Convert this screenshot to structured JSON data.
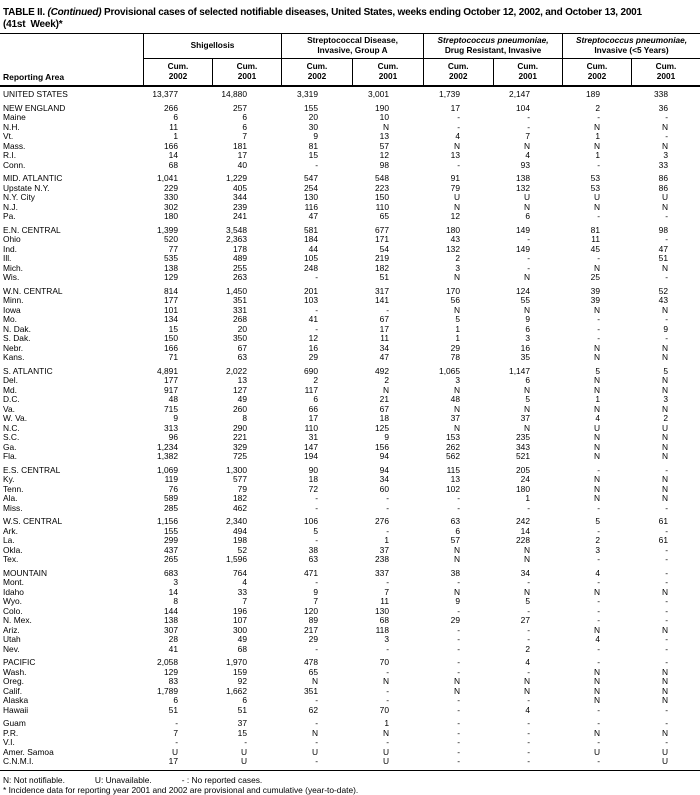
{
  "title": {
    "part1": "TABLE II. ",
    "continued": "(Continued)",
    "part2": " Provisional cases of selected notifiable diseases, United States, weeks ending October 12, 2002, and October 13, 2001",
    "line2": "(41st  Week)*"
  },
  "header": {
    "reporting_area": "Reporting Area",
    "groups": [
      {
        "line1": "Shigellosis",
        "line2": "",
        "line1_italic": false
      },
      {
        "line1": "Streptococcal Disease,",
        "line2": "Invasive, Group A",
        "line1_italic": false
      },
      {
        "line1": "Streptococcus pneumoniae,",
        "line2": "Drug Resistant, Invasive",
        "line1_italic": true
      },
      {
        "line1": "Streptococcus pneumoniae,",
        "line2": "Invasive (<5 Years)",
        "line1_italic": true
      }
    ],
    "subcols": [
      {
        "l1": "Cum.",
        "l2": "2002"
      },
      {
        "l1": "Cum.",
        "l2": "2001"
      }
    ]
  },
  "table": {
    "rows": [
      {
        "area": "UNITED STATES",
        "gap": false,
        "values": [
          "13,377",
          "14,880",
          "3,319",
          "3,001",
          "1,739",
          "2,147",
          "189",
          "338"
        ]
      },
      {
        "area": "NEW ENGLAND",
        "gap": true,
        "values": [
          "266",
          "257",
          "155",
          "190",
          "17",
          "104",
          "2",
          "36"
        ]
      },
      {
        "area": "Maine",
        "gap": false,
        "values": [
          "6",
          "6",
          "20",
          "10",
          "-",
          "-",
          "-",
          "-"
        ]
      },
      {
        "area": "N.H.",
        "gap": false,
        "values": [
          "11",
          "6",
          "30",
          "N",
          "-",
          "-",
          "N",
          "N"
        ]
      },
      {
        "area": "Vt.",
        "gap": false,
        "values": [
          "1",
          "7",
          "9",
          "13",
          "4",
          "7",
          "1",
          "-"
        ]
      },
      {
        "area": "Mass.",
        "gap": false,
        "values": [
          "166",
          "181",
          "81",
          "57",
          "N",
          "N",
          "N",
          "N"
        ]
      },
      {
        "area": "R.I.",
        "gap": false,
        "values": [
          "14",
          "17",
          "15",
          "12",
          "13",
          "4",
          "1",
          "3"
        ]
      },
      {
        "area": "Conn.",
        "gap": false,
        "values": [
          "68",
          "40",
          "-",
          "98",
          "-",
          "93",
          "-",
          "33"
        ]
      },
      {
        "area": "MID. ATLANTIC",
        "gap": true,
        "values": [
          "1,041",
          "1,229",
          "547",
          "548",
          "91",
          "138",
          "53",
          "86"
        ]
      },
      {
        "area": "Upstate N.Y.",
        "gap": false,
        "values": [
          "229",
          "405",
          "254",
          "223",
          "79",
          "132",
          "53",
          "86"
        ]
      },
      {
        "area": "N.Y. City",
        "gap": false,
        "values": [
          "330",
          "344",
          "130",
          "150",
          "U",
          "U",
          "U",
          "U"
        ]
      },
      {
        "area": "N.J.",
        "gap": false,
        "values": [
          "302",
          "239",
          "116",
          "110",
          "N",
          "N",
          "N",
          "N"
        ]
      },
      {
        "area": "Pa.",
        "gap": false,
        "values": [
          "180",
          "241",
          "47",
          "65",
          "12",
          "6",
          "-",
          "-"
        ]
      },
      {
        "area": "E.N. CENTRAL",
        "gap": true,
        "values": [
          "1,399",
          "3,548",
          "581",
          "677",
          "180",
          "149",
          "81",
          "98"
        ]
      },
      {
        "area": "Ohio",
        "gap": false,
        "values": [
          "520",
          "2,363",
          "184",
          "171",
          "43",
          "-",
          "11",
          "-"
        ]
      },
      {
        "area": "Ind.",
        "gap": false,
        "values": [
          "77",
          "178",
          "44",
          "54",
          "132",
          "149",
          "45",
          "47"
        ]
      },
      {
        "area": "Ill.",
        "gap": false,
        "values": [
          "535",
          "489",
          "105",
          "219",
          "2",
          "-",
          "-",
          "51"
        ]
      },
      {
        "area": "Mich.",
        "gap": false,
        "values": [
          "138",
          "255",
          "248",
          "182",
          "3",
          "-",
          "N",
          "N"
        ]
      },
      {
        "area": "Wis.",
        "gap": false,
        "values": [
          "129",
          "263",
          "-",
          "51",
          "N",
          "N",
          "25",
          "-"
        ]
      },
      {
        "area": "W.N. CENTRAL",
        "gap": true,
        "values": [
          "814",
          "1,450",
          "201",
          "317",
          "170",
          "124",
          "39",
          "52"
        ]
      },
      {
        "area": "Minn.",
        "gap": false,
        "values": [
          "177",
          "351",
          "103",
          "141",
          "56",
          "55",
          "39",
          "43"
        ]
      },
      {
        "area": "Iowa",
        "gap": false,
        "values": [
          "101",
          "331",
          "-",
          "-",
          "N",
          "N",
          "N",
          "N"
        ]
      },
      {
        "area": "Mo.",
        "gap": false,
        "values": [
          "134",
          "268",
          "41",
          "67",
          "5",
          "9",
          "-",
          "-"
        ]
      },
      {
        "area": "N. Dak.",
        "gap": false,
        "values": [
          "15",
          "20",
          "-",
          "17",
          "1",
          "6",
          "-",
          "9"
        ]
      },
      {
        "area": "S. Dak.",
        "gap": false,
        "values": [
          "150",
          "350",
          "12",
          "11",
          "1",
          "3",
          "-",
          "-"
        ]
      },
      {
        "area": "Nebr.",
        "gap": false,
        "values": [
          "166",
          "67",
          "16",
          "34",
          "29",
          "16",
          "N",
          "N"
        ]
      },
      {
        "area": "Kans.",
        "gap": false,
        "values": [
          "71",
          "63",
          "29",
          "47",
          "78",
          "35",
          "N",
          "N"
        ]
      },
      {
        "area": "S. ATLANTIC",
        "gap": true,
        "values": [
          "4,891",
          "2,022",
          "690",
          "492",
          "1,065",
          "1,147",
          "5",
          "5"
        ]
      },
      {
        "area": "Del.",
        "gap": false,
        "values": [
          "177",
          "13",
          "2",
          "2",
          "3",
          "6",
          "N",
          "N"
        ]
      },
      {
        "area": "Md.",
        "gap": false,
        "values": [
          "917",
          "127",
          "117",
          "N",
          "N",
          "N",
          "N",
          "N"
        ]
      },
      {
        "area": "D.C.",
        "gap": false,
        "values": [
          "48",
          "49",
          "6",
          "21",
          "48",
          "5",
          "1",
          "3"
        ]
      },
      {
        "area": "Va.",
        "gap": false,
        "values": [
          "715",
          "260",
          "66",
          "67",
          "N",
          "N",
          "N",
          "N"
        ]
      },
      {
        "area": "W. Va.",
        "gap": false,
        "values": [
          "9",
          "8",
          "17",
          "18",
          "37",
          "37",
          "4",
          "2"
        ]
      },
      {
        "area": "N.C.",
        "gap": false,
        "values": [
          "313",
          "290",
          "110",
          "125",
          "N",
          "N",
          "U",
          "U"
        ]
      },
      {
        "area": "S.C.",
        "gap": false,
        "values": [
          "96",
          "221",
          "31",
          "9",
          "153",
          "235",
          "N",
          "N"
        ]
      },
      {
        "area": "Ga.",
        "gap": false,
        "values": [
          "1,234",
          "329",
          "147",
          "156",
          "262",
          "343",
          "N",
          "N"
        ]
      },
      {
        "area": "Fla.",
        "gap": false,
        "values": [
          "1,382",
          "725",
          "194",
          "94",
          "562",
          "521",
          "N",
          "N"
        ]
      },
      {
        "area": "E.S. CENTRAL",
        "gap": true,
        "values": [
          "1,069",
          "1,300",
          "90",
          "94",
          "115",
          "205",
          "-",
          "-"
        ]
      },
      {
        "area": "Ky.",
        "gap": false,
        "values": [
          "119",
          "577",
          "18",
          "34",
          "13",
          "24",
          "N",
          "N"
        ]
      },
      {
        "area": "Tenn.",
        "gap": false,
        "values": [
          "76",
          "79",
          "72",
          "60",
          "102",
          "180",
          "N",
          "N"
        ]
      },
      {
        "area": "Ala.",
        "gap": false,
        "values": [
          "589",
          "182",
          "-",
          "-",
          "-",
          "1",
          "N",
          "N"
        ]
      },
      {
        "area": "Miss.",
        "gap": false,
        "values": [
          "285",
          "462",
          "-",
          "-",
          "-",
          "-",
          "-",
          "-"
        ]
      },
      {
        "area": "W.S. CENTRAL",
        "gap": true,
        "values": [
          "1,156",
          "2,340",
          "106",
          "276",
          "63",
          "242",
          "5",
          "61"
        ]
      },
      {
        "area": "Ark.",
        "gap": false,
        "values": [
          "155",
          "494",
          "5",
          "-",
          "6",
          "14",
          "-",
          "-"
        ]
      },
      {
        "area": "La.",
        "gap": false,
        "values": [
          "299",
          "198",
          "-",
          "1",
          "57",
          "228",
          "2",
          "61"
        ]
      },
      {
        "area": "Okla.",
        "gap": false,
        "values": [
          "437",
          "52",
          "38",
          "37",
          "N",
          "N",
          "3",
          "-"
        ]
      },
      {
        "area": "Tex.",
        "gap": false,
        "values": [
          "265",
          "1,596",
          "63",
          "238",
          "N",
          "N",
          "-",
          "-"
        ]
      },
      {
        "area": "MOUNTAIN",
        "gap": true,
        "values": [
          "683",
          "764",
          "471",
          "337",
          "38",
          "34",
          "4",
          "-"
        ]
      },
      {
        "area": "Mont.",
        "gap": false,
        "values": [
          "3",
          "4",
          "-",
          "-",
          "-",
          "-",
          "-",
          "-"
        ]
      },
      {
        "area": "Idaho",
        "gap": false,
        "values": [
          "14",
          "33",
          "9",
          "7",
          "N",
          "N",
          "N",
          "N"
        ]
      },
      {
        "area": "Wyo.",
        "gap": false,
        "values": [
          "8",
          "7",
          "7",
          "11",
          "9",
          "5",
          "-",
          "-"
        ]
      },
      {
        "area": "Colo.",
        "gap": false,
        "values": [
          "144",
          "196",
          "120",
          "130",
          "-",
          "-",
          "-",
          "-"
        ]
      },
      {
        "area": "N. Mex.",
        "gap": false,
        "values": [
          "138",
          "107",
          "89",
          "68",
          "29",
          "27",
          "-",
          "-"
        ]
      },
      {
        "area": "Ariz.",
        "gap": false,
        "values": [
          "307",
          "300",
          "217",
          "118",
          "-",
          "-",
          "N",
          "N"
        ]
      },
      {
        "area": "Utah",
        "gap": false,
        "values": [
          "28",
          "49",
          "29",
          "3",
          "-",
          "-",
          "4",
          "-"
        ]
      },
      {
        "area": "Nev.",
        "gap": false,
        "values": [
          "41",
          "68",
          "-",
          "-",
          "-",
          "2",
          "-",
          "-"
        ]
      },
      {
        "area": "PACIFIC",
        "gap": true,
        "values": [
          "2,058",
          "1,970",
          "478",
          "70",
          "-",
          "4",
          "-",
          "-"
        ]
      },
      {
        "area": "Wash.",
        "gap": false,
        "values": [
          "129",
          "159",
          "65",
          "-",
          "-",
          "-",
          "N",
          "N"
        ]
      },
      {
        "area": "Oreg.",
        "gap": false,
        "values": [
          "83",
          "92",
          "N",
          "N",
          "N",
          "N",
          "N",
          "N"
        ]
      },
      {
        "area": "Calif.",
        "gap": false,
        "values": [
          "1,789",
          "1,662",
          "351",
          "-",
          "N",
          "N",
          "N",
          "N"
        ]
      },
      {
        "area": "Alaska",
        "gap": false,
        "values": [
          "6",
          "6",
          "-",
          "-",
          "-",
          "-",
          "N",
          "N"
        ]
      },
      {
        "area": "Hawaii",
        "gap": false,
        "values": [
          "51",
          "51",
          "62",
          "70",
          "-",
          "4",
          "-",
          "-"
        ]
      },
      {
        "area": "Guam",
        "gap": true,
        "values": [
          "-",
          "37",
          "-",
          "1",
          "-",
          "-",
          "-",
          "-"
        ]
      },
      {
        "area": "P.R.",
        "gap": false,
        "values": [
          "7",
          "15",
          "N",
          "N",
          "-",
          "-",
          "N",
          "N"
        ]
      },
      {
        "area": "V.I.",
        "gap": false,
        "values": [
          "-",
          "-",
          "-",
          "-",
          "-",
          "-",
          "-",
          "-"
        ]
      },
      {
        "area": "Amer. Samoa",
        "gap": false,
        "values": [
          "U",
          "U",
          "U",
          "U",
          "-",
          "-",
          "U",
          "U"
        ]
      },
      {
        "area": "C.N.M.I.",
        "gap": false,
        "values": [
          "17",
          "U",
          "-",
          "U",
          "-",
          "-",
          "-",
          "U"
        ]
      }
    ]
  },
  "footnotes": {
    "legend": [
      "N: Not notifiable.",
      "U: Unavailable.",
      "- : No reported cases."
    ],
    "note": "* Incidence data for reporting year 2001 and 2002 are provisional and cumulative (year-to-date)."
  }
}
